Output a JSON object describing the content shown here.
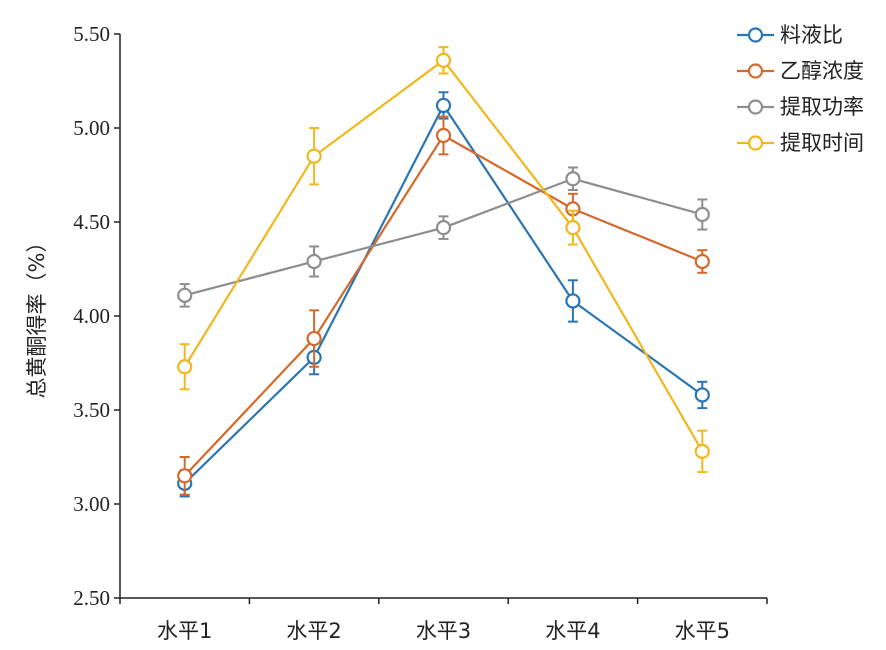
{
  "chart_data": {
    "type": "line",
    "ylabel": "总黄酮得率（%）",
    "xlabel": "",
    "categories": [
      "水平1",
      "水平2",
      "水平3",
      "水平4",
      "水平5"
    ],
    "ylim": [
      2.5,
      5.5
    ],
    "yticks": [
      "2.50",
      "3.00",
      "3.50",
      "4.00",
      "4.50",
      "5.00",
      "5.50"
    ],
    "grid": false,
    "legend_position": "top-right",
    "series": [
      {
        "name": "料液比",
        "color": "#2a75b3",
        "values": [
          3.11,
          3.78,
          5.12,
          4.08,
          3.58
        ],
        "errors": [
          0.07,
          0.09,
          0.07,
          0.11,
          0.07
        ]
      },
      {
        "name": "乙醇浓度",
        "color": "#d4692c",
        "values": [
          3.15,
          3.88,
          4.96,
          4.57,
          4.29
        ],
        "errors": [
          0.1,
          0.15,
          0.1,
          0.08,
          0.06
        ]
      },
      {
        "name": "提取功率",
        "color": "#8e8e8e",
        "values": [
          4.11,
          4.29,
          4.47,
          4.73,
          4.54
        ],
        "errors": [
          0.06,
          0.08,
          0.06,
          0.06,
          0.08
        ]
      },
      {
        "name": "提取时间",
        "color": "#f0b81e",
        "values": [
          3.73,
          4.85,
          5.36,
          4.47,
          3.28
        ],
        "errors": [
          0.12,
          0.15,
          0.07,
          0.09,
          0.11
        ]
      }
    ]
  }
}
